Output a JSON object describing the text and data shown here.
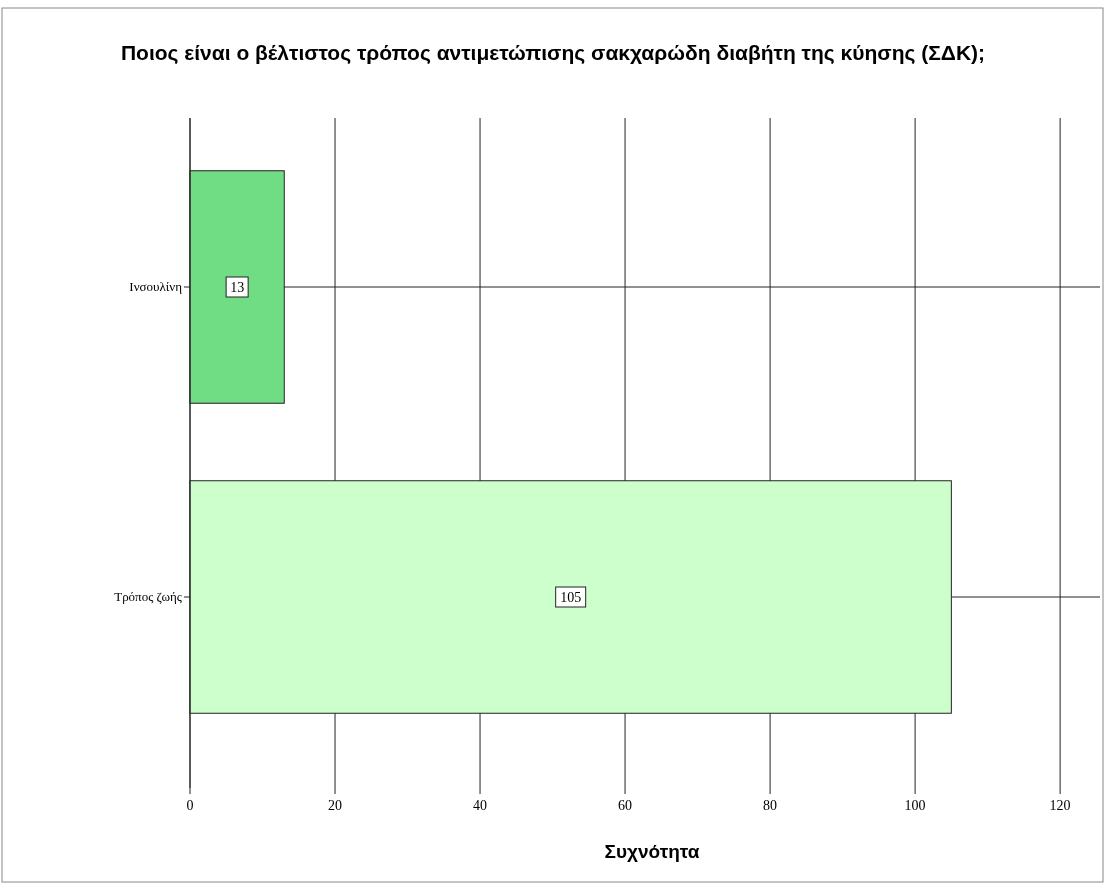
{
  "chart_data": {
    "type": "bar",
    "orientation": "horizontal",
    "title": "Ποιος είναι ο βέλτιστος τρόπος αντιμετώπισης σακχαρώδη διαβήτη της κύησης (ΣΔΚ);",
    "xlabel": "Συχνότητα",
    "categories": [
      "Ινσουλίνη",
      "Τρόπος ζωής"
    ],
    "values": [
      13,
      105
    ],
    "colors": [
      "#70dc84",
      "#ccffcc"
    ],
    "xlim": [
      0,
      125.5
    ],
    "xticks": [
      0,
      20,
      40,
      60,
      80,
      100,
      120
    ],
    "grid": true,
    "data_labels": true
  }
}
